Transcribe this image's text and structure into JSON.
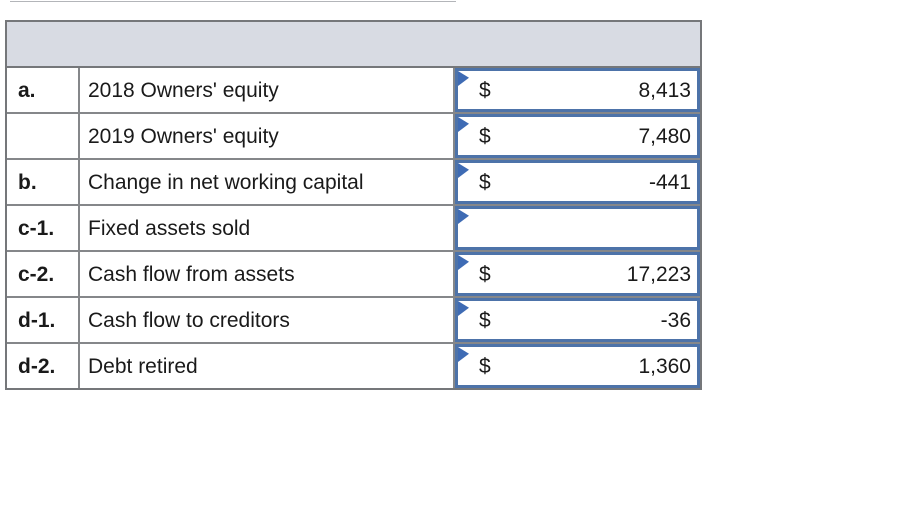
{
  "table": {
    "header_label": "",
    "rows": [
      {
        "label": "a.",
        "description": "2018 Owners' equity",
        "currency": "$",
        "value": "8,413"
      },
      {
        "label": "",
        "description": "2019 Owners' equity",
        "currency": "$",
        "value": "7,480"
      },
      {
        "label": "b.",
        "description": "Change in net working capital",
        "currency": "$",
        "value": "-441"
      },
      {
        "label": "c-1.",
        "description": "Fixed assets sold",
        "currency": "",
        "value": ""
      },
      {
        "label": "c-2.",
        "description": "Cash flow from assets",
        "currency": "$",
        "value": "17,223"
      },
      {
        "label": "d-1.",
        "description": "Cash flow to creditors",
        "currency": "$",
        "value": "-36"
      },
      {
        "label": "d-2.",
        "description": "Debt retired",
        "currency": "$",
        "value": "1,360"
      }
    ],
    "colors": {
      "header_fill": "#d8dbe3",
      "grid_border": "#85878a",
      "outer_border": "#75777a",
      "input_border": "#4d73a9",
      "flag": "#3e6bb4",
      "text": "#1a1a1a"
    }
  }
}
